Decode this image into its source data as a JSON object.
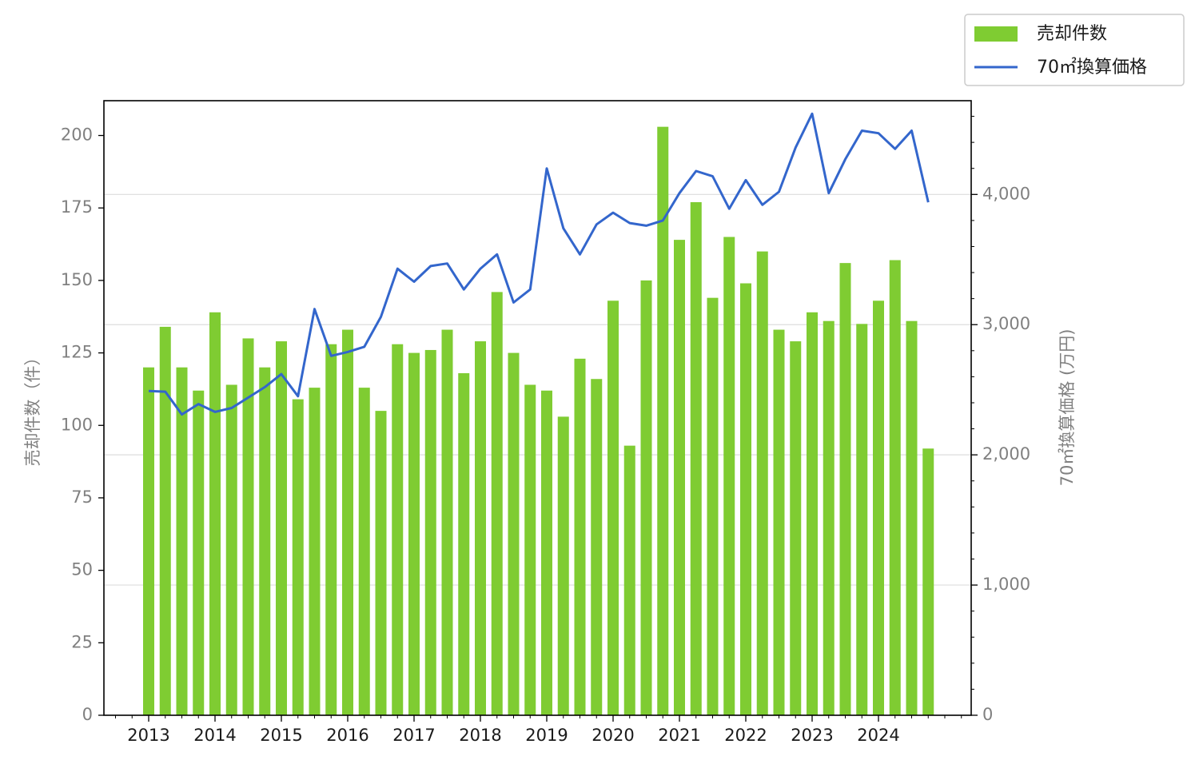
{
  "chart_data": {
    "type": "bar+line",
    "x_tick_labels": [
      "2013",
      "2014",
      "2015",
      "2016",
      "2017",
      "2018",
      "2019",
      "2020",
      "2021",
      "2022",
      "2023",
      "2024"
    ],
    "y_left_label": "売却件数（件）",
    "y_right_label": "70㎡換算価格 (万円)",
    "y_left_ticks": [
      "0",
      "25",
      "50",
      "75",
      "100",
      "125",
      "150",
      "175",
      "200"
    ],
    "y_right_ticks": [
      "0",
      "1,000",
      "2,000",
      "3,000",
      "4,000"
    ],
    "ylim_left": [
      0,
      212
    ],
    "ylim_right": [
      0,
      4720
    ],
    "grid": "horizontal, right axis",
    "legend": [
      {
        "label": "売却件数",
        "type": "bar",
        "color": "#7fcc32"
      },
      {
        "label": "70㎡換算価格",
        "type": "line",
        "color": "#3366cc"
      }
    ],
    "series": [
      {
        "name": "売却件数",
        "type": "bar",
        "axis": "left",
        "color": "#7fcc32",
        "values": [
          120,
          134,
          120,
          112,
          139,
          114,
          130,
          120,
          129,
          109,
          113,
          128,
          133,
          113,
          105,
          128,
          125,
          126,
          133,
          118,
          129,
          146,
          125,
          114,
          112,
          103,
          123,
          116,
          143,
          93,
          150,
          203,
          164,
          177,
          144,
          165,
          149,
          160,
          133,
          129,
          139,
          136,
          156,
          135,
          143,
          157,
          136,
          92
        ]
      },
      {
        "name": "70㎡換算価格",
        "type": "line",
        "axis": "right",
        "color": "#3366cc",
        "values": [
          2490,
          2485,
          2310,
          2390,
          2330,
          2360,
          2440,
          2520,
          2620,
          2450,
          3120,
          2760,
          2790,
          2830,
          3060,
          3430,
          3330,
          3450,
          3470,
          3270,
          3430,
          3540,
          3170,
          3270,
          4200,
          3740,
          3540,
          3770,
          3860,
          3780,
          3760,
          3800,
          4010,
          4180,
          4140,
          3890,
          4110,
          3920,
          4020,
          4360,
          4620,
          4010,
          4270,
          4490,
          4470,
          4350,
          4490,
          3940
        ]
      }
    ]
  }
}
